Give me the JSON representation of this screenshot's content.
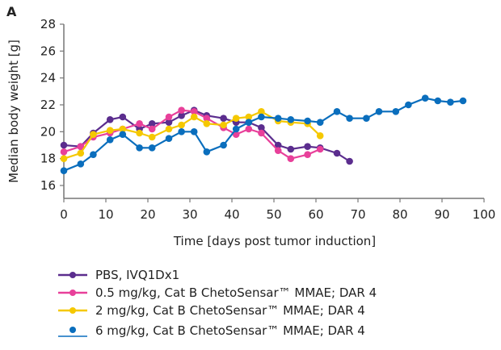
{
  "panel_label": "A",
  "chart_data": {
    "type": "line",
    "title": "",
    "xlabel": "Time [days post tumor induction]",
    "ylabel": "Median body weight [g]",
    "xlim": [
      0,
      100
    ],
    "ylim": [
      16,
      28
    ],
    "xticks": [
      0,
      10,
      20,
      30,
      40,
      50,
      60,
      70,
      80,
      90,
      100
    ],
    "yticks": [
      16,
      18,
      20,
      22,
      24,
      26,
      28
    ],
    "grid": false,
    "legend_placement": "bottom",
    "series": [
      {
        "name": "PBS, IVQ1Dx1",
        "color": "#5b2d8e",
        "x": [
          0,
          4,
          7,
          11,
          14,
          18,
          21,
          25,
          28,
          31,
          34,
          38,
          41,
          44,
          47,
          51,
          54,
          58,
          61,
          65,
          68
        ],
        "y": [
          19.0,
          18.9,
          19.9,
          20.9,
          21.1,
          20.2,
          20.6,
          20.7,
          21.2,
          21.6,
          21.2,
          21.0,
          20.7,
          20.7,
          20.3,
          19.0,
          18.7,
          18.9,
          18.8,
          18.4,
          17.8
        ]
      },
      {
        "name": "0.5 mg/kg, Cat B ChetoSensar™ MMAE; DAR 4",
        "color": "#e8409a",
        "x": [
          0,
          4,
          7,
          11,
          14,
          18,
          21,
          25,
          28,
          31,
          34,
          38,
          41,
          44,
          47,
          51,
          54,
          58,
          61
        ],
        "y": [
          18.5,
          18.9,
          19.6,
          19.9,
          20.2,
          20.6,
          20.2,
          21.1,
          21.6,
          21.5,
          21.0,
          20.3,
          19.8,
          20.2,
          19.9,
          18.6,
          18.0,
          18.3,
          18.7
        ]
      },
      {
        "name": "2 mg/kg, Cat B ChetoSensar™ MMAE; DAR 4",
        "color": "#f5c800",
        "x": [
          0,
          4,
          7,
          11,
          14,
          18,
          21,
          25,
          28,
          31,
          34,
          38,
          41,
          44,
          47,
          51,
          54,
          58,
          61
        ],
        "y": [
          18.0,
          18.4,
          19.8,
          20.1,
          20.2,
          19.9,
          19.6,
          20.2,
          20.5,
          21.1,
          20.6,
          20.5,
          21.0,
          21.1,
          21.5,
          20.8,
          20.7,
          20.6,
          19.7
        ]
      },
      {
        "name": "6 mg/kg, Cat B ChetoSensar™ MMAE; DAR 4",
        "color": "#0a6ebd",
        "x": [
          0,
          4,
          7,
          11,
          14,
          18,
          21,
          25,
          28,
          31,
          34,
          38,
          41,
          44,
          47,
          51,
          54,
          58,
          61,
          65,
          68,
          72,
          75,
          79,
          82,
          86,
          89,
          92,
          95
        ],
        "y": [
          17.1,
          17.6,
          18.3,
          19.4,
          19.8,
          18.8,
          18.8,
          19.5,
          20.0,
          20.0,
          18.5,
          19.0,
          20.2,
          20.7,
          21.1,
          21.0,
          20.9,
          20.8,
          20.7,
          21.5,
          21.0,
          21.0,
          21.5,
          21.5,
          22.0,
          22.5,
          22.3,
          22.2,
          22.3
        ]
      }
    ]
  }
}
